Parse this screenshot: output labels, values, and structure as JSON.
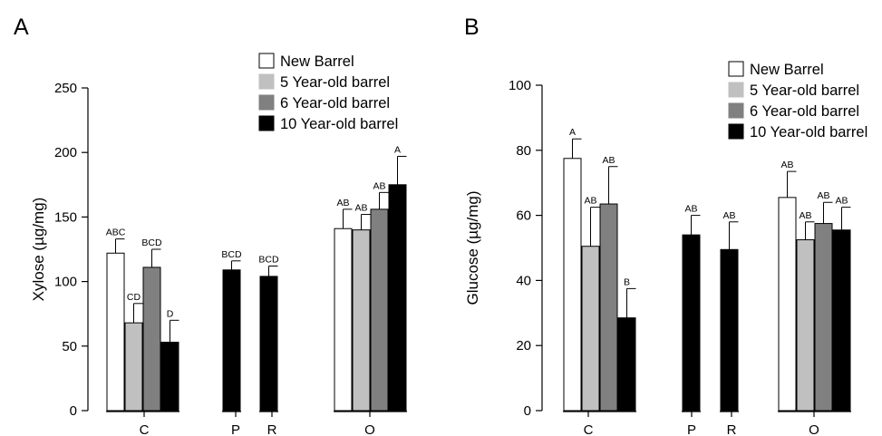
{
  "chart_data": [
    {
      "type": "bar",
      "panel": "A",
      "title": "",
      "xlabel": "",
      "ylabel": "Xylose (µg/mg)",
      "ylim": [
        0,
        250
      ],
      "yticks": [
        0,
        50,
        100,
        150,
        200,
        250
      ],
      "grid": false,
      "legend_position": "top-right",
      "categories": [
        "C",
        "P",
        "R",
        "O"
      ],
      "series": [
        {
          "name": "New Barrel",
          "color": "#ffffff",
          "values": [
            122,
            null,
            null,
            141
          ],
          "errors": [
            11,
            null,
            null,
            15
          ],
          "labels": [
            "ABC",
            null,
            null,
            "AB"
          ]
        },
        {
          "name": "5 Year-old barrel",
          "color": "#c0c0c0",
          "values": [
            68,
            null,
            null,
            140
          ],
          "errors": [
            15,
            null,
            null,
            12
          ],
          "labels": [
            "CD",
            null,
            null,
            "AB"
          ]
        },
        {
          "name": "6 Year-old barrel",
          "color": "#808080",
          "values": [
            111,
            null,
            null,
            156
          ],
          "errors": [
            14,
            null,
            null,
            13
          ],
          "labels": [
            "BCD",
            null,
            null,
            "AB"
          ]
        },
        {
          "name": "10 Year-old barrel",
          "color": "#000000",
          "values": [
            53,
            109,
            104,
            175
          ],
          "errors": [
            17,
            7,
            8,
            22
          ],
          "labels": [
            "D",
            "BCD",
            "BCD",
            "A"
          ]
        }
      ]
    },
    {
      "type": "bar",
      "panel": "B",
      "title": "",
      "xlabel": "",
      "ylabel": "Glucose (µg/mg)",
      "ylim": [
        0,
        100
      ],
      "yticks": [
        0,
        20,
        40,
        60,
        80,
        100
      ],
      "grid": false,
      "legend_position": "top-right",
      "categories": [
        "C",
        "P",
        "R",
        "O"
      ],
      "series": [
        {
          "name": "New Barrel",
          "color": "#ffffff",
          "values": [
            77.5,
            null,
            null,
            65.5
          ],
          "errors": [
            6,
            null,
            null,
            8
          ],
          "labels": [
            "A",
            null,
            null,
            "AB"
          ]
        },
        {
          "name": "5 Year-old barrel",
          "color": "#c0c0c0",
          "values": [
            50.5,
            null,
            null,
            52.5
          ],
          "errors": [
            12,
            null,
            null,
            5.5
          ],
          "labels": [
            "AB",
            null,
            null,
            "AB"
          ]
        },
        {
          "name": "6 Year-old barrel",
          "color": "#808080",
          "values": [
            63.5,
            null,
            null,
            57.5
          ],
          "errors": [
            11.5,
            null,
            null,
            6.5
          ],
          "labels": [
            "AB",
            null,
            null,
            "AB"
          ]
        },
        {
          "name": "10 Year-old barrel",
          "color": "#000000",
          "values": [
            28.5,
            54,
            49.5,
            55.5
          ],
          "errors": [
            9,
            6,
            8.5,
            7
          ],
          "labels": [
            "B",
            "AB",
            "AB",
            "AB"
          ]
        }
      ]
    }
  ]
}
